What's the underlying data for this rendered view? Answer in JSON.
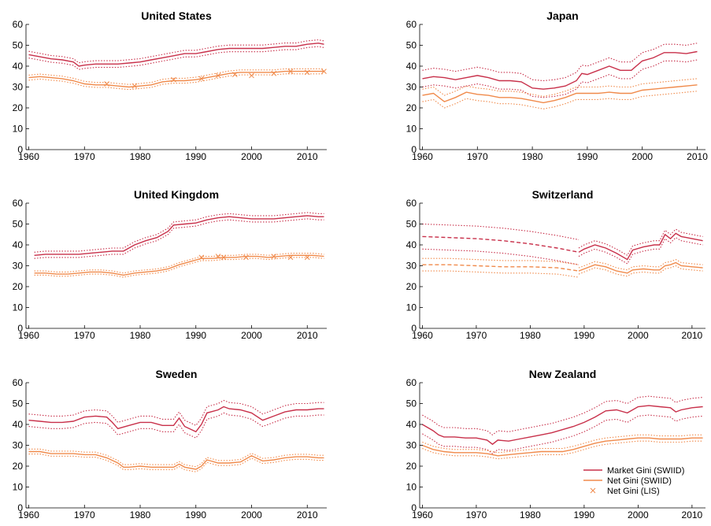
{
  "colors": {
    "market": "#c8304a",
    "net": "#f08a4b",
    "lis": "#f08a4b",
    "axis": "#000000"
  },
  "legend": {
    "position": "bottom-right of New Zealand panel",
    "items": [
      {
        "label": "Market Gini (SWIID)",
        "style": "solid",
        "color": "#c8304a"
      },
      {
        "label": "Net Gini (SWIID)",
        "style": "solid",
        "color": "#f08a4b"
      },
      {
        "label": "Net Gini (LIS)",
        "style": "marker-x",
        "color": "#f08a4b"
      }
    ]
  },
  "chart_data": [
    {
      "type": "line",
      "title": "United States",
      "xlim": [
        1959.5,
        2013.5
      ],
      "ylim": [
        0,
        60
      ],
      "xticks": [
        1960,
        1970,
        1980,
        1990,
        2000,
        2010
      ],
      "yticks": [
        0,
        10,
        20,
        30,
        40,
        50,
        60
      ],
      "grid": false,
      "series": [
        {
          "name": "Market Gini (SWIID)",
          "ci": 1.6,
          "x": [
            1960,
            1962,
            1964,
            1966,
            1968,
            1969,
            1970,
            1972,
            1974,
            1976,
            1978,
            1980,
            1982,
            1984,
            1986,
            1988,
            1990,
            1992,
            1994,
            1996,
            1998,
            2000,
            2002,
            2004,
            2006,
            2008,
            2010,
            2012,
            2013
          ],
          "y": [
            45.5,
            44.5,
            43.5,
            43.0,
            42.0,
            40.0,
            40.5,
            41.0,
            41.0,
            41.0,
            41.5,
            42.0,
            43.0,
            44.0,
            45.0,
            46.0,
            46.0,
            47.0,
            48.0,
            48.5,
            48.5,
            48.5,
            48.5,
            49.0,
            49.5,
            49.5,
            50.5,
            51.0,
            50.5
          ]
        },
        {
          "name": "Net Gini (SWIID)",
          "ci": 1.2,
          "x": [
            1960,
            1962,
            1964,
            1966,
            1968,
            1970,
            1972,
            1974,
            1976,
            1978,
            1980,
            1982,
            1984,
            1986,
            1988,
            1990,
            1992,
            1994,
            1996,
            1998,
            2000,
            2002,
            2004,
            2006,
            2008,
            2010,
            2012,
            2013
          ],
          "y": [
            34.5,
            35.0,
            34.5,
            34.0,
            33.0,
            31.5,
            31.0,
            31.0,
            30.5,
            30.0,
            30.5,
            31.0,
            32.5,
            33.0,
            33.0,
            33.5,
            34.5,
            35.5,
            36.5,
            37.0,
            37.0,
            37.0,
            37.0,
            37.5,
            37.5,
            37.5,
            37.5,
            37.5
          ]
        },
        {
          "name": "Net Gini (LIS)",
          "markers": true,
          "x": [
            1974,
            1979,
            1986,
            1991,
            1994,
            1997,
            2000,
            2004,
            2007,
            2010,
            2013
          ],
          "y": [
            31.5,
            30.5,
            33.5,
            34.0,
            35.5,
            36.0,
            35.5,
            36.5,
            37.5,
            37.0,
            37.5
          ]
        }
      ]
    },
    {
      "type": "line",
      "title": "Japan",
      "xlim": [
        1959.5,
        2011.5
      ],
      "ylim": [
        0,
        60
      ],
      "xticks": [
        1960,
        1970,
        1980,
        1990,
        2000,
        2010
      ],
      "yticks": [
        0,
        10,
        20,
        30,
        40,
        50,
        60
      ],
      "grid": false,
      "series": [
        {
          "name": "Market Gini (SWIID)",
          "ci": 4.0,
          "x": [
            1960,
            1962,
            1964,
            1966,
            1968,
            1970,
            1972,
            1974,
            1976,
            1978,
            1980,
            1982,
            1984,
            1986,
            1988,
            1989,
            1990,
            1992,
            1994,
            1996,
            1998,
            2000,
            2002,
            2004,
            2006,
            2008,
            2010
          ],
          "y": [
            34.0,
            35.0,
            34.5,
            33.5,
            34.5,
            35.5,
            34.5,
            33.0,
            33.0,
            32.5,
            29.5,
            29.0,
            29.5,
            30.5,
            33.0,
            36.5,
            36.0,
            38.0,
            40.0,
            38.0,
            38.0,
            42.5,
            44.0,
            46.5,
            46.5,
            46.0,
            47.0
          ]
        },
        {
          "name": "Net Gini (SWIID)",
          "ci": 3.0,
          "x": [
            1960,
            1962,
            1964,
            1966,
            1968,
            1970,
            1972,
            1974,
            1976,
            1978,
            1980,
            1982,
            1984,
            1986,
            1988,
            1990,
            1992,
            1994,
            1996,
            1998,
            2000,
            2002,
            2004,
            2006,
            2008,
            2010
          ],
          "y": [
            26.0,
            27.0,
            23.0,
            25.0,
            27.5,
            26.5,
            26.0,
            25.0,
            25.0,
            24.5,
            23.5,
            22.5,
            23.5,
            25.0,
            27.0,
            27.0,
            27.0,
            27.5,
            27.0,
            27.0,
            28.5,
            29.0,
            29.5,
            30.0,
            30.5,
            31.0
          ]
        }
      ]
    },
    {
      "type": "line",
      "title": "United Kingdom",
      "xlim": [
        1959.5,
        2013.5
      ],
      "ylim": [
        0,
        60
      ],
      "xticks": [
        1960,
        1970,
        1980,
        1990,
        2000,
        2010
      ],
      "yticks": [
        0,
        10,
        20,
        30,
        40,
        50,
        60
      ],
      "grid": false,
      "series": [
        {
          "name": "Market Gini (SWIID)",
          "ci": 1.5,
          "x": [
            1961,
            1963,
            1965,
            1967,
            1969,
            1971,
            1973,
            1975,
            1977,
            1979,
            1981,
            1983,
            1985,
            1986,
            1988,
            1990,
            1992,
            1994,
            1996,
            1998,
            2000,
            2002,
            2004,
            2006,
            2008,
            2010,
            2012,
            2013
          ],
          "y": [
            35.0,
            35.5,
            35.5,
            35.5,
            35.5,
            36.0,
            36.5,
            37.0,
            37.0,
            40.0,
            42.0,
            43.5,
            46.5,
            49.5,
            50.0,
            50.5,
            52.0,
            53.0,
            53.5,
            53.0,
            52.5,
            52.5,
            52.5,
            53.0,
            53.5,
            54.0,
            53.5,
            53.5
          ]
        },
        {
          "name": "Net Gini (SWIID)",
          "ci": 1.0,
          "x": [
            1961,
            1963,
            1965,
            1967,
            1969,
            1971,
            1973,
            1975,
            1977,
            1979,
            1981,
            1983,
            1985,
            1987,
            1989,
            1991,
            1993,
            1995,
            1997,
            1999,
            2001,
            2003,
            2005,
            2007,
            2009,
            2011,
            2013
          ],
          "y": [
            26.5,
            26.5,
            26.0,
            26.0,
            26.5,
            27.0,
            27.0,
            26.5,
            25.5,
            26.5,
            27.0,
            27.5,
            28.5,
            30.5,
            32.0,
            33.5,
            33.5,
            34.0,
            34.0,
            34.5,
            34.5,
            34.0,
            34.5,
            35.0,
            35.0,
            35.0,
            34.5
          ]
        },
        {
          "name": "Net Gini (LIS)",
          "markers": true,
          "x": [
            1991,
            1994,
            1995,
            1999,
            2004,
            2007,
            2010
          ],
          "y": [
            34.0,
            34.5,
            34.0,
            34.0,
            34.5,
            34.0,
            34.0
          ]
        }
      ]
    },
    {
      "type": "line",
      "title": "Switzerland",
      "xlim": [
        1959.5,
        2012.5
      ],
      "ylim": [
        0,
        60
      ],
      "xticks": [
        1960,
        1970,
        1980,
        1990,
        2000,
        2010
      ],
      "yticks": [
        0,
        10,
        20,
        30,
        40,
        50,
        60
      ],
      "grid": false,
      "series": [
        {
          "name": "Market Gini (SWIID) interpolated",
          "dashed": true,
          "ci": 6.0,
          "x": [
            1960,
            1965,
            1970,
            1975,
            1980,
            1985,
            1989
          ],
          "y": [
            44.0,
            43.5,
            43.0,
            42.0,
            40.5,
            38.5,
            36.5
          ]
        },
        {
          "name": "Market Gini (SWIID)",
          "ci": 2.0,
          "x": [
            1989,
            1990,
            1992,
            1994,
            1996,
            1998,
            1999,
            2001,
            2003,
            2004,
            2005,
            2006,
            2007,
            2008,
            2009,
            2010,
            2012
          ],
          "y": [
            36.5,
            38.0,
            40.0,
            38.5,
            36.0,
            33.0,
            37.5,
            39.0,
            40.0,
            40.0,
            45.0,
            43.0,
            45.5,
            44.0,
            43.5,
            43.0,
            42.0
          ]
        },
        {
          "name": "Net Gini (SWIID) interpolated",
          "dashed": true,
          "ci": 3.0,
          "x": [
            1960,
            1965,
            1970,
            1975,
            1980,
            1985,
            1989
          ],
          "y": [
            30.5,
            30.5,
            30.0,
            29.5,
            29.5,
            29.0,
            27.5
          ]
        },
        {
          "name": "Net Gini (SWIID)",
          "ci": 1.5,
          "x": [
            1989,
            1990,
            1992,
            1994,
            1996,
            1998,
            1999,
            2001,
            2003,
            2004,
            2005,
            2006,
            2007,
            2008,
            2010,
            2012
          ],
          "y": [
            27.5,
            28.5,
            30.5,
            29.5,
            27.5,
            26.5,
            28.0,
            28.5,
            28.0,
            28.0,
            30.0,
            30.5,
            31.5,
            30.0,
            29.5,
            29.0
          ]
        }
      ]
    },
    {
      "type": "line",
      "title": "Sweden",
      "xlim": [
        1959.5,
        2013.5
      ],
      "ylim": [
        0,
        60
      ],
      "xticks": [
        1960,
        1970,
        1980,
        1990,
        2000,
        2010
      ],
      "yticks": [
        0,
        10,
        20,
        30,
        40,
        50,
        60
      ],
      "grid": false,
      "series": [
        {
          "name": "Market Gini (SWIID)",
          "ci": 3.0,
          "x": [
            1960,
            1962,
            1964,
            1966,
            1968,
            1970,
            1972,
            1974,
            1975,
            1976,
            1978,
            1980,
            1982,
            1984,
            1986,
            1987,
            1988,
            1990,
            1991,
            1992,
            1994,
            1995,
            1996,
            1998,
            2000,
            2002,
            2004,
            2006,
            2008,
            2010,
            2012,
            2013
          ],
          "y": [
            42.0,
            41.5,
            41.0,
            41.0,
            41.5,
            43.5,
            44.0,
            43.5,
            41.0,
            38.0,
            39.5,
            41.0,
            41.0,
            39.5,
            39.5,
            43.0,
            39.0,
            36.5,
            40.0,
            45.5,
            47.0,
            48.5,
            47.5,
            47.0,
            45.5,
            42.0,
            44.0,
            46.0,
            47.0,
            47.0,
            47.5,
            47.5
          ]
        },
        {
          "name": "Net Gini (SWIID)",
          "ci": 1.2,
          "x": [
            1960,
            1962,
            1964,
            1966,
            1968,
            1970,
            1972,
            1974,
            1976,
            1977,
            1978,
            1980,
            1982,
            1984,
            1986,
            1987,
            1988,
            1990,
            1991,
            1992,
            1994,
            1996,
            1998,
            2000,
            2002,
            2004,
            2006,
            2008,
            2010,
            2012,
            2013
          ],
          "y": [
            27.0,
            27.0,
            26.0,
            26.0,
            26.0,
            25.5,
            25.5,
            24.0,
            21.5,
            19.5,
            19.5,
            20.0,
            19.5,
            19.5,
            19.5,
            21.0,
            19.5,
            18.5,
            20.0,
            23.0,
            21.5,
            21.5,
            22.0,
            25.0,
            22.5,
            23.0,
            24.0,
            24.5,
            24.5,
            24.0,
            24.0
          ]
        }
      ]
    },
    {
      "type": "line",
      "title": "New Zealand",
      "xlim": [
        1959.5,
        2012.5
      ],
      "ylim": [
        0,
        60
      ],
      "xticks": [
        1960,
        1970,
        1980,
        1990,
        2000,
        2010
      ],
      "yticks": [
        0,
        10,
        20,
        30,
        40,
        50,
        60
      ],
      "grid": false,
      "series": [
        {
          "name": "Market Gini (SWIID)",
          "ci": 4.5,
          "x": [
            1960,
            1962,
            1963,
            1964,
            1966,
            1968,
            1970,
            1972,
            1973,
            1974,
            1976,
            1978,
            1980,
            1982,
            1984,
            1986,
            1988,
            1990,
            1992,
            1994,
            1996,
            1998,
            2000,
            2002,
            2004,
            2006,
            2007,
            2008,
            2010,
            2012
          ],
          "y": [
            40.0,
            37.0,
            35.0,
            34.0,
            34.0,
            33.5,
            33.5,
            32.5,
            30.5,
            32.5,
            32.0,
            33.0,
            34.0,
            35.0,
            36.0,
            37.5,
            39.0,
            41.0,
            43.5,
            46.5,
            47.0,
            45.5,
            48.5,
            49.0,
            48.5,
            48.0,
            46.0,
            47.0,
            48.0,
            48.5
          ]
        },
        {
          "name": "Net Gini (SWIID)",
          "ci": 1.5,
          "x": [
            1960,
            1962,
            1964,
            1966,
            1968,
            1970,
            1972,
            1974,
            1976,
            1978,
            1980,
            1982,
            1984,
            1986,
            1988,
            1990,
            1992,
            1994,
            1996,
            1998,
            2000,
            2002,
            2004,
            2006,
            2008,
            2010,
            2012
          ],
          "y": [
            30.0,
            28.0,
            27.0,
            26.5,
            26.5,
            26.5,
            26.0,
            25.0,
            25.5,
            26.0,
            26.5,
            27.0,
            27.0,
            27.0,
            28.0,
            29.5,
            31.0,
            32.0,
            32.5,
            33.0,
            33.5,
            33.5,
            33.0,
            33.0,
            33.0,
            33.5,
            33.5
          ]
        }
      ]
    }
  ]
}
